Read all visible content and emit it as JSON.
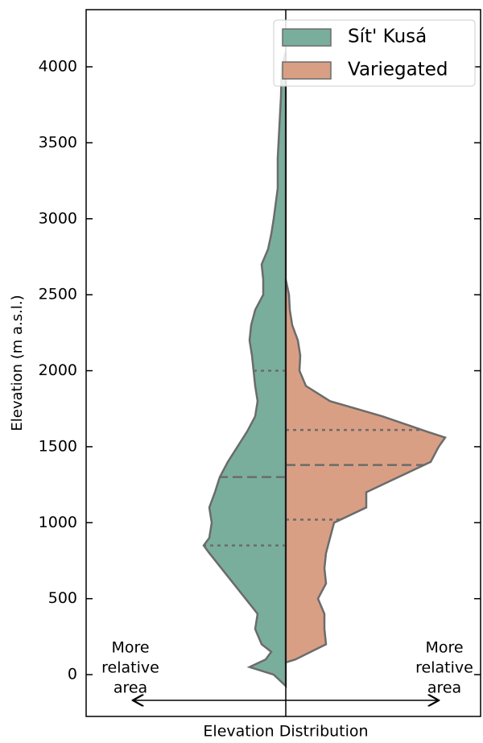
{
  "chart_data": {
    "type": "split-violin",
    "ylabel": "Elevation (m a.s.l.)",
    "xlabel": "Elevation Distribution",
    "ylim": [
      -275,
      4376
    ],
    "yticks": [
      0,
      500,
      1000,
      1500,
      2000,
      2500,
      3000,
      3500,
      4000
    ],
    "legend": "upper right",
    "edge_color": "#6b6b6b",
    "series": [
      {
        "name": "Sít' Kusá",
        "color": "#7aae9c",
        "side": "left",
        "elevations": [
          -75,
          -50,
          0,
          50,
          100,
          150,
          200,
          300,
          400,
          500,
          600,
          700,
          800,
          850,
          900,
          1000,
          1100,
          1200,
          1300,
          1400,
          1500,
          1600,
          1700,
          1800,
          1900,
          2000,
          2100,
          2200,
          2300,
          2400,
          2500,
          2600,
          2700,
          2800,
          2900,
          3000,
          3200,
          3400,
          3600,
          3800,
          4000,
          4100
        ],
        "values": [
          0,
          5,
          15,
          45,
          25,
          18,
          30,
          38,
          35,
          50,
          65,
          80,
          95,
          102,
          95,
          92,
          95,
          88,
          82,
          72,
          60,
          48,
          38,
          35,
          38,
          40,
          42,
          45,
          43,
          38,
          28,
          28,
          30,
          22,
          18,
          15,
          10,
          10,
          8,
          6,
          5,
          0
        ],
        "quartiles": [
          850,
          1300,
          2000
        ]
      },
      {
        "name": "Variegated",
        "color": "#d99f84",
        "side": "right",
        "elevations": [
          80,
          100,
          200,
          300,
          400,
          500,
          600,
          700,
          800,
          900,
          1000,
          1100,
          1200,
          1300,
          1400,
          1500,
          1560,
          1600,
          1700,
          1800,
          1900,
          2000,
          2100,
          2200,
          2300,
          2400,
          2500,
          2600
        ],
        "values": [
          0,
          12,
          50,
          48,
          48,
          40,
          50,
          48,
          50,
          55,
          60,
          100,
          100,
          140,
          180,
          190,
          198,
          175,
          120,
          55,
          25,
          17,
          18,
          15,
          8,
          5,
          4,
          0
        ],
        "quartiles": [
          1020,
          1380,
          1610
        ]
      }
    ],
    "annotations": [
      {
        "lines": [
          "More",
          "relative",
          "area"
        ],
        "side": "left"
      },
      {
        "lines": [
          "More",
          "relative",
          "area"
        ],
        "side": "right"
      }
    ]
  }
}
